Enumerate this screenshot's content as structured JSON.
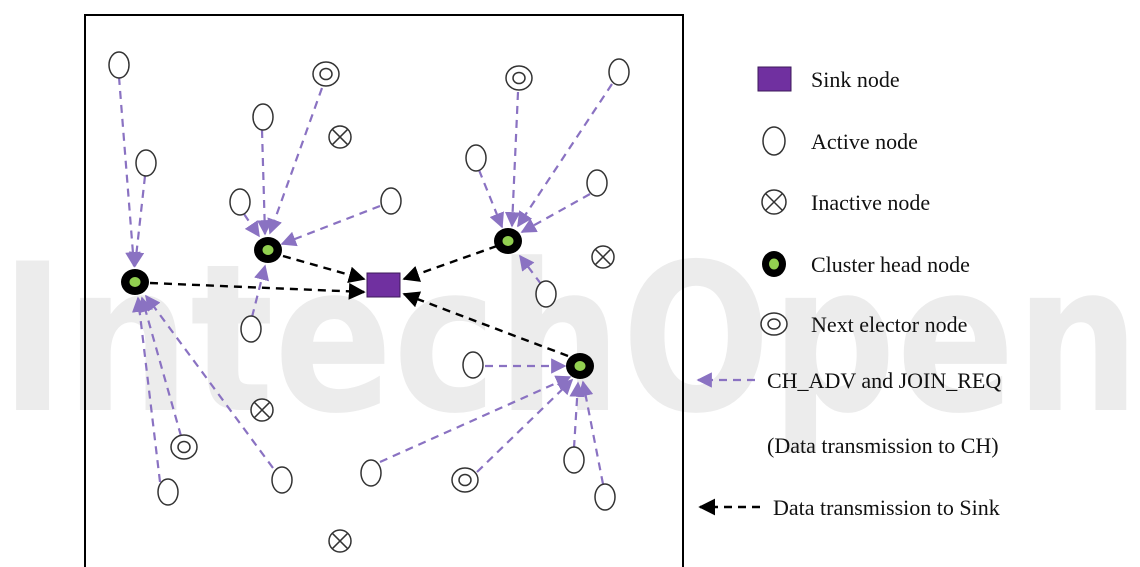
{
  "colors": {
    "sink": "#7030a0",
    "cluster_head_ring": "#000000",
    "cluster_head_center": "#92d050",
    "join_arrow": "#8a72c2",
    "sink_arrow": "#000000",
    "watermark": "#e6e6e6"
  },
  "watermark": {
    "text": "IntechOpen"
  },
  "legend": {
    "sink": "Sink node",
    "active": "Active node",
    "inactive": "Inactive node",
    "cluster_head": "Cluster head node",
    "next_elector": "Next elector node",
    "join_arrow": "CH_ADV and JOIN_REQ",
    "join_arrow_sub": "(Data transmission to CH)",
    "sink_arrow": "Data transmission to Sink"
  },
  "node_types": {
    "active": "active",
    "inactive": "inactive",
    "next_elector": "next-elector",
    "cluster_head": "cluster-head",
    "sink": "sink"
  }
}
